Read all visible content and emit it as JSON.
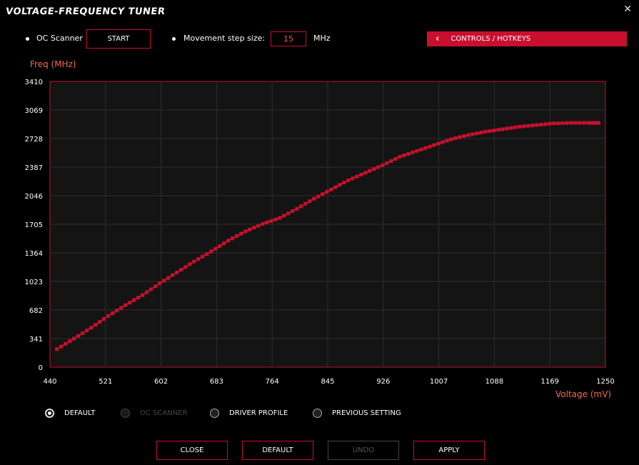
{
  "window": {
    "title": "VOLTAGE-FREQUENCY TUNER",
    "close_icon": "close-icon"
  },
  "toolbar": {
    "oc_scanner_label": "OC Scanner",
    "start_label": "START",
    "step_label": "Movement step size:",
    "step_value": "15",
    "step_unit": "MHz",
    "hotkeys_label": "CONTROLS / HOTKEYS"
  },
  "chart_data": {
    "type": "line",
    "ylabel": "Freq (MHz)",
    "xlabel": "Voltage (mV)",
    "xlim": [
      440,
      1250
    ],
    "ylim": [
      0,
      3410
    ],
    "x_ticks": [
      "440",
      "521",
      "602",
      "683",
      "764",
      "845",
      "926",
      "1007",
      "1088",
      "1169",
      "1250"
    ],
    "y_ticks": [
      "0",
      "341",
      "682",
      "1023",
      "1364",
      "1705",
      "2046",
      "2387",
      "2728",
      "3069",
      "3410"
    ],
    "grid": true,
    "series": [
      {
        "color": "#c8102e",
        "x": [
          450,
          475,
          500,
          525,
          550,
          575,
          600,
          625,
          650,
          675,
          700,
          725,
          750,
          775,
          800,
          825,
          850,
          875,
          900,
          925,
          950,
          975,
          1000,
          1025,
          1050,
          1075,
          1100,
          1125,
          1150,
          1175,
          1200,
          1225,
          1240
        ],
        "y": [
          215,
          340,
          470,
          610,
          740,
          860,
          1000,
          1130,
          1260,
          1380,
          1510,
          1620,
          1710,
          1780,
          1890,
          2010,
          2120,
          2230,
          2320,
          2410,
          2510,
          2580,
          2650,
          2720,
          2770,
          2810,
          2840,
          2870,
          2890,
          2910,
          2915,
          2915,
          2915
        ]
      }
    ]
  },
  "radios": [
    {
      "label": "DEFAULT",
      "selected": true,
      "disabled": false
    },
    {
      "label": "OC SCANNER",
      "selected": false,
      "disabled": true
    },
    {
      "label": "DRIVER PROFILE",
      "selected": false,
      "disabled": false
    },
    {
      "label": "PREVIOUS SETTING",
      "selected": false,
      "disabled": false
    }
  ],
  "footer": {
    "close_label": "CLOSE",
    "default_label": "DEFAULT",
    "undo_label": "UNDO",
    "apply_label": "APPLY"
  }
}
